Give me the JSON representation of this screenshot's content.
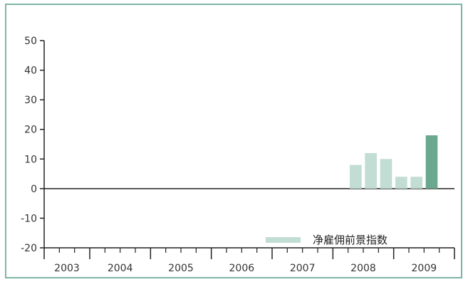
{
  "chart_data": {
    "type": "bar",
    "title": "",
    "xlabel": "",
    "ylabel": "",
    "ylim": [
      -20,
      50
    ],
    "y_ticks": [
      "50",
      "40",
      "30",
      "20",
      "10",
      "0",
      "-10",
      "-20"
    ],
    "x_year_labels": [
      "2003",
      "2004",
      "2005",
      "2006",
      "2007",
      "2008",
      "2009"
    ],
    "quarter_ticks": 27,
    "series": [
      {
        "name": "净雇佣前景指数",
        "points": [
          {
            "quarter": "2008 Q2",
            "value": 8
          },
          {
            "quarter": "2008 Q3",
            "value": 12
          },
          {
            "quarter": "2008 Q4",
            "value": 10
          },
          {
            "quarter": "2009 Q1",
            "value": 4
          },
          {
            "quarter": "2009 Q2",
            "value": 4
          },
          {
            "quarter": "2009 Q3",
            "value": 18
          }
        ]
      }
    ],
    "legend_position": "bottom-right",
    "colors": {
      "frame": "#7fb5a6",
      "bar": "#c2ddd3",
      "bar_highlight": "#6aa88f",
      "axis": "#222222"
    }
  }
}
